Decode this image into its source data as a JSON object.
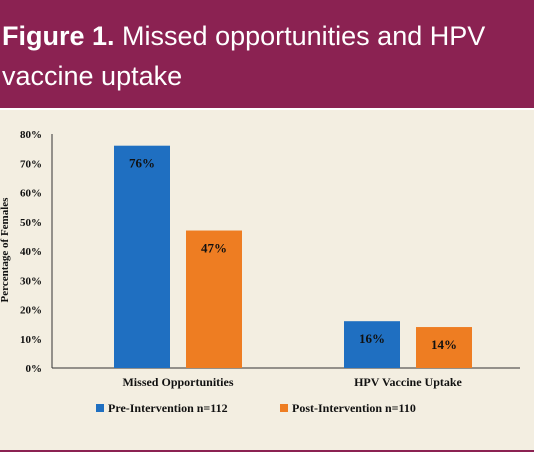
{
  "figure": {
    "label": "Figure 1.",
    "caption": "Missed opportunities and HPV vaccine uptake"
  },
  "colors": {
    "header_bg": "#8b2252",
    "panel_bg": "#f3eee1",
    "pre": "#1f6fc1",
    "post": "#ee7d22"
  },
  "chart_data": {
    "type": "bar",
    "categories": [
      "Missed Opportunities",
      "HPV Vaccine Uptake"
    ],
    "series": [
      {
        "name": "Pre-Intervention n=112",
        "values": [
          76,
          16
        ],
        "labels": [
          "76%",
          "16%"
        ]
      },
      {
        "name": "Post-Intervention n=110",
        "values": [
          47,
          14
        ],
        "labels": [
          "47%",
          "14%"
        ]
      }
    ],
    "ylabel": "Percentage of Females",
    "ylim": [
      0,
      80
    ],
    "yticks": [
      0,
      10,
      20,
      30,
      40,
      50,
      60,
      70,
      80
    ],
    "ytick_labels": [
      "0%",
      "10%",
      "20%",
      "30%",
      "40%",
      "50%",
      "60%",
      "70%",
      "80%"
    ],
    "grid": false,
    "legend_position": "bottom"
  }
}
